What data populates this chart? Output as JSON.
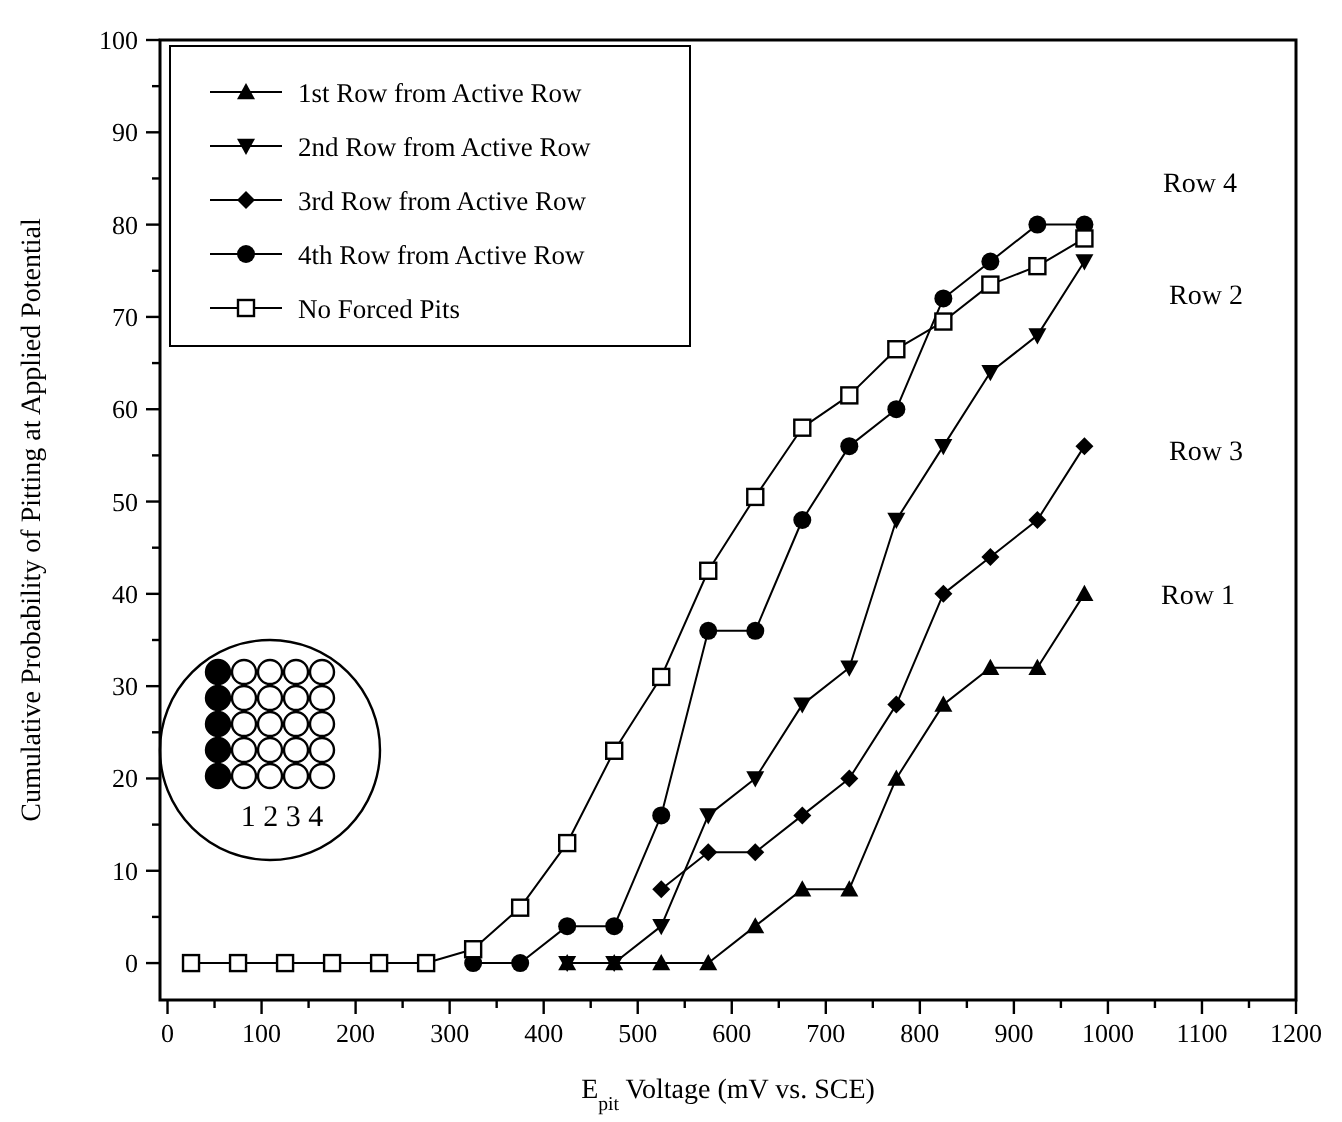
{
  "chart_data": {
    "type": "line",
    "xlabel": "E$_{pit}$ Voltage (mV vs. SCE)",
    "ylabel": "Cumulative Probability of Pitting at Applied Potential",
    "x": [
      25,
      75,
      125,
      175,
      225,
      275,
      325,
      375,
      425,
      475,
      525,
      575,
      625,
      675,
      725,
      775,
      825,
      875,
      925,
      975
    ],
    "series": [
      {
        "name": "1st Row from Active Row",
        "color": "#000000",
        "marker": "triangle",
        "values": [
          null,
          null,
          null,
          null,
          null,
          null,
          null,
          null,
          0,
          0,
          0,
          0,
          4,
          8,
          8,
          20,
          28,
          32,
          32,
          40
        ]
      },
      {
        "name": "2nd Row from Active Row",
        "color": "#000000",
        "marker": "triangle-down",
        "values": [
          null,
          null,
          null,
          null,
          null,
          null,
          null,
          null,
          0,
          0,
          4,
          16,
          20,
          28,
          32,
          48,
          56,
          64,
          68,
          76
        ]
      },
      {
        "name": "3rd Row from Active Row",
        "color": "#000000",
        "marker": "diamond",
        "values": [
          null,
          null,
          null,
          null,
          null,
          null,
          null,
          null,
          null,
          null,
          8,
          12,
          12,
          16,
          20,
          28,
          40,
          44,
          48,
          56
        ]
      },
      {
        "name": "4th Row from Active Row",
        "color": "#000000",
        "marker": "circle",
        "values": [
          null,
          null,
          null,
          null,
          null,
          null,
          0,
          0,
          4,
          4,
          16,
          36,
          36,
          48,
          56,
          60,
          72,
          76,
          80,
          80
        ]
      },
      {
        "name": "No Forced Pits",
        "color": "#000000",
        "marker": "square",
        "values": [
          0,
          0,
          0,
          0,
          0,
          0,
          1.5,
          6,
          13,
          23,
          31,
          42.5,
          50.5,
          58,
          61.5,
          66.5,
          69.5,
          73.5,
          75.5,
          78.5
        ]
      }
    ],
    "xlim": [
      -8,
      1200
    ],
    "ylim": [
      -4,
      100
    ],
    "xticks": [
      0,
      {
        "value": 50,
        "label": null
      },
      100,
      {
        "value": 150,
        "label": null
      },
      200,
      {
        "value": 250,
        "label": null
      },
      300,
      {
        "value": 350,
        "label": null
      },
      400,
      {
        "value": 450,
        "label": null
      },
      500,
      {
        "value": 550,
        "label": null
      },
      600,
      {
        "value": 650,
        "label": null
      },
      700,
      {
        "value": 750,
        "label": null
      },
      800,
      {
        "value": 850,
        "label": null
      },
      900,
      {
        "value": 950,
        "label": null
      },
      1000,
      {
        "value": 1050,
        "label": null
      },
      1100,
      {
        "value": 1150,
        "label": null
      },
      1200
    ],
    "yticks": [
      0,
      {
        "value": 5,
        "label": null
      },
      10,
      {
        "value": 15,
        "label": null
      },
      20,
      {
        "value": 25,
        "label": null
      },
      30,
      {
        "value": 35,
        "label": null
      },
      40,
      {
        "value": 45,
        "label": null
      },
      50,
      {
        "value": 55,
        "label": null
      },
      60,
      {
        "value": 65,
        "label": null
      },
      70,
      {
        "value": 75,
        "label": null
      },
      80,
      {
        "value": 85,
        "label": null
      },
      90,
      {
        "value": 95,
        "label": null
      },
      100
    ],
    "annotations": [
      "Row 4",
      "Row 2",
      "Row 3",
      "Row 1",
      "1 2 3 4"
    ],
    "legend": "top left",
    "grid": false,
    "line_style": "solid"
  }
}
